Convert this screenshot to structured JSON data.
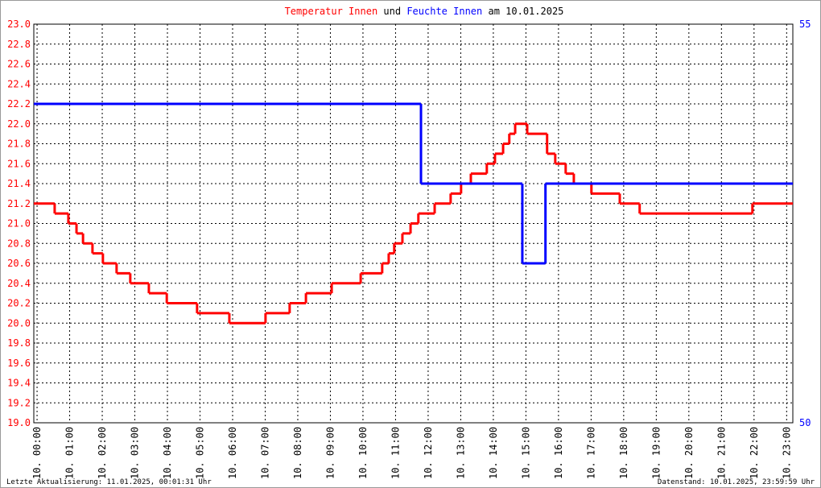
{
  "chart_data": {
    "type": "step",
    "title_connector": "und",
    "title_date": "am 10.01.2025",
    "footer_left": "Letzte Aktualisierung: 11.01.2025, 00:01:31 Uhr",
    "footer_right": "Datenstand: 10.01.2025, 23:59:59 Uhr",
    "grid": true,
    "xlim": [
      -0.1,
      23.19
    ],
    "xticks": [
      {
        "value": 0,
        "label": "10. 00:00"
      },
      {
        "value": 1,
        "label": "10. 01:00"
      },
      {
        "value": 2,
        "label": "10. 02:00"
      },
      {
        "value": 3,
        "label": "10. 03:00"
      },
      {
        "value": 4,
        "label": "10. 04:00"
      },
      {
        "value": 5,
        "label": "10. 05:00"
      },
      {
        "value": 6,
        "label": "10. 06:00"
      },
      {
        "value": 7,
        "label": "10. 07:00"
      },
      {
        "value": 8,
        "label": "10. 08:00"
      },
      {
        "value": 9,
        "label": "10. 09:00"
      },
      {
        "value": 10,
        "label": "10. 10:00"
      },
      {
        "value": 11,
        "label": "10. 11:00"
      },
      {
        "value": 12,
        "label": "10. 12:00"
      },
      {
        "value": 13,
        "label": "10. 13:00"
      },
      {
        "value": 14,
        "label": "10. 14:00"
      },
      {
        "value": 15,
        "label": "10. 15:00"
      },
      {
        "value": 16,
        "label": "10. 16:00"
      },
      {
        "value": 17,
        "label": "10. 17:00"
      },
      {
        "value": 18,
        "label": "10. 18:00"
      },
      {
        "value": 19,
        "label": "10. 19:00"
      },
      {
        "value": 20,
        "label": "10. 20:00"
      },
      {
        "value": 21,
        "label": "10. 21:00"
      },
      {
        "value": 22,
        "label": "10. 22:00"
      },
      {
        "value": 23,
        "label": "10. 23:00"
      }
    ],
    "ylim": [
      19,
      23
    ],
    "yticks": [
      {
        "value": 19,
        "label": "19.0"
      },
      {
        "value": 19.2,
        "label": "19.2"
      },
      {
        "value": 19.4,
        "label": "19.4"
      },
      {
        "value": 19.6,
        "label": "19.6"
      },
      {
        "value": 19.8,
        "label": "19.8"
      },
      {
        "value": 20,
        "label": "20.0"
      },
      {
        "value": 20.2,
        "label": "20.2"
      },
      {
        "value": 20.4,
        "label": "20.4"
      },
      {
        "value": 20.6,
        "label": "20.6"
      },
      {
        "value": 20.8,
        "label": "20.8"
      },
      {
        "value": 21,
        "label": "21.0"
      },
      {
        "value": 21.2,
        "label": "21.2"
      },
      {
        "value": 21.4,
        "label": "21.4"
      },
      {
        "value": 21.6,
        "label": "21.6"
      },
      {
        "value": 21.8,
        "label": "21.8"
      },
      {
        "value": 22,
        "label": "22.0"
      },
      {
        "value": 22.2,
        "label": "22.2"
      },
      {
        "value": 22.4,
        "label": "22.4"
      },
      {
        "value": 22.6,
        "label": "22.6"
      },
      {
        "value": 22.8,
        "label": "22.8"
      },
      {
        "value": 23,
        "label": "23.0"
      }
    ],
    "y2lim": [
      50,
      55
    ],
    "y2ticks": [
      50,
      55
    ],
    "series": [
      {
        "name": "Temperatur Innen",
        "color": "#ff0000",
        "x": [
          -0.1,
          0.54,
          0.96,
          1.21,
          1.41,
          1.7,
          2.02,
          2.44,
          2.86,
          3.43,
          3.98,
          4.91,
          5.9,
          7.01,
          7.75,
          8.25,
          9.04,
          9.93,
          10.59,
          10.79,
          10.96,
          11.21,
          11.46,
          11.7,
          12.2,
          12.69,
          13.01,
          13.31,
          13.8,
          14.05,
          14.3,
          14.49,
          14.67,
          15.04,
          15.65,
          15.9,
          16.22,
          16.47,
          17.01,
          17.88,
          18.49,
          21.95,
          23.19
        ],
        "values": [
          21.2,
          21.1,
          21.0,
          20.9,
          20.8,
          20.7,
          20.6,
          20.5,
          20.4,
          20.3,
          20.2,
          20.1,
          20.0,
          20.1,
          20.2,
          20.3,
          20.4,
          20.5,
          20.6,
          20.7,
          20.8,
          20.9,
          21.0,
          21.1,
          21.2,
          21.3,
          21.4,
          21.5,
          21.6,
          21.7,
          21.8,
          21.9,
          22.0,
          21.9,
          21.7,
          21.6,
          21.5,
          21.4,
          21.3,
          21.2,
          21.1,
          21.2,
          21.2
        ]
      },
      {
        "name": "Feuchte Innen",
        "color": "#0000ff",
        "axis": "y2",
        "x": [
          -0.1,
          11.78,
          14.89,
          15.6,
          23.19
        ],
        "values": [
          54,
          53,
          52,
          53,
          53
        ]
      }
    ]
  }
}
